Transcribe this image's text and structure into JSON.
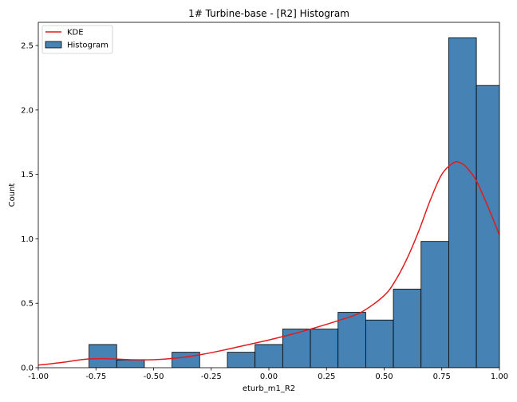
{
  "chart_data": {
    "type": "bar",
    "title": "1# Turbine-base - [R2] Histogram",
    "xlabel": "eturb_m1_R2",
    "ylabel": "Count",
    "xlim": [
      -1.0,
      1.0
    ],
    "ylim": [
      0.0,
      2.68
    ],
    "xticks": [
      "-1.00",
      "-0.75",
      "-0.50",
      "-0.25",
      "0.00",
      "0.25",
      "0.50",
      "0.75",
      "1.00"
    ],
    "xtick_values": [
      -1.0,
      -0.75,
      -0.5,
      -0.25,
      0.0,
      0.25,
      0.5,
      0.75,
      1.0
    ],
    "yticks": [
      "0.0",
      "0.5",
      "1.0",
      "1.5",
      "2.0",
      "2.5"
    ],
    "ytick_values": [
      0.0,
      0.5,
      1.0,
      1.5,
      2.0,
      2.5
    ],
    "grid": false,
    "legend_position": "top-left",
    "legend": [
      {
        "label": "KDE",
        "kind": "line",
        "color": "#e31a1c"
      },
      {
        "label": "Histogram",
        "kind": "patch",
        "color": "#4682b4"
      }
    ],
    "bins": {
      "edges": [
        -0.78,
        -0.66,
        -0.54,
        -0.42,
        -0.3,
        -0.18,
        -0.06,
        0.06,
        0.18,
        0.3,
        0.42,
        0.54,
        0.66,
        0.78,
        0.9,
        1.02
      ],
      "heights": [
        0.18,
        0.06,
        0.0,
        0.12,
        0.0,
        0.12,
        0.18,
        0.3,
        0.3,
        0.43,
        0.37,
        0.61,
        0.98,
        2.56,
        2.19
      ]
    },
    "kde": {
      "x": [
        -1.0,
        -0.9,
        -0.8,
        -0.7,
        -0.6,
        -0.5,
        -0.4,
        -0.3,
        -0.2,
        -0.1,
        0.0,
        0.1,
        0.2,
        0.3,
        0.4,
        0.5,
        0.55,
        0.6,
        0.65,
        0.7,
        0.75,
        0.8,
        0.83,
        0.86,
        0.9,
        0.95,
        1.0
      ],
      "y": [
        0.02,
        0.04,
        0.065,
        0.07,
        0.062,
        0.062,
        0.075,
        0.1,
        0.135,
        0.175,
        0.215,
        0.26,
        0.31,
        0.365,
        0.43,
        0.56,
        0.68,
        0.85,
        1.06,
        1.3,
        1.5,
        1.59,
        1.59,
        1.55,
        1.45,
        1.25,
        1.03
      ]
    },
    "colors": {
      "bar_fill": "#4682b4",
      "bar_edge": "#000000",
      "kde_line": "#e31a1c"
    }
  }
}
